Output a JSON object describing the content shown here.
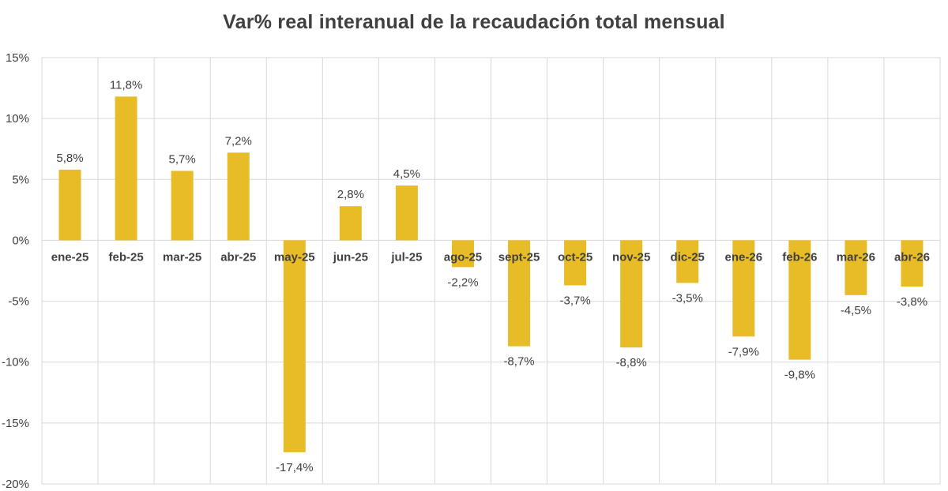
{
  "chart_data": {
    "type": "bar",
    "title": "Var% real interanual de la recaudación total mensual",
    "xlabel": "",
    "ylabel": "",
    "categories": [
      "ene-25",
      "feb-25",
      "mar-25",
      "abr-25",
      "may-25",
      "jun-25",
      "jul-25",
      "ago-25",
      "sept-25",
      "oct-25",
      "nov-25",
      "dic-25",
      "ene-26",
      "feb-26",
      "mar-26",
      "abr-26"
    ],
    "values": [
      5.8,
      11.8,
      5.7,
      7.2,
      -17.4,
      2.8,
      4.5,
      -2.2,
      -8.7,
      -3.7,
      -8.8,
      -3.5,
      -7.9,
      -9.8,
      -4.5,
      -3.8
    ],
    "data_labels": [
      "5,8%",
      "11,8%",
      "5,7%",
      "7,2%",
      "-17,4%",
      "2,8%",
      "4,5%",
      "-2,2%",
      "-8,7%",
      "-3,7%",
      "-8,8%",
      "-3,5%",
      "-7,9%",
      "-9,8%",
      "-4,5%",
      "-3,8%"
    ],
    "y_ticks": [
      15,
      10,
      5,
      0,
      -5,
      -10,
      -15,
      -20
    ],
    "y_tick_labels": [
      "15%",
      "10%",
      "5%",
      "0%",
      "-5%",
      "-10%",
      "-15%",
      "-20%"
    ],
    "ylim": [
      -20,
      15
    ],
    "grid": true,
    "bar_color": "#E8BC27",
    "grid_color": "#D9D9D9",
    "text_color": "#404040"
  }
}
